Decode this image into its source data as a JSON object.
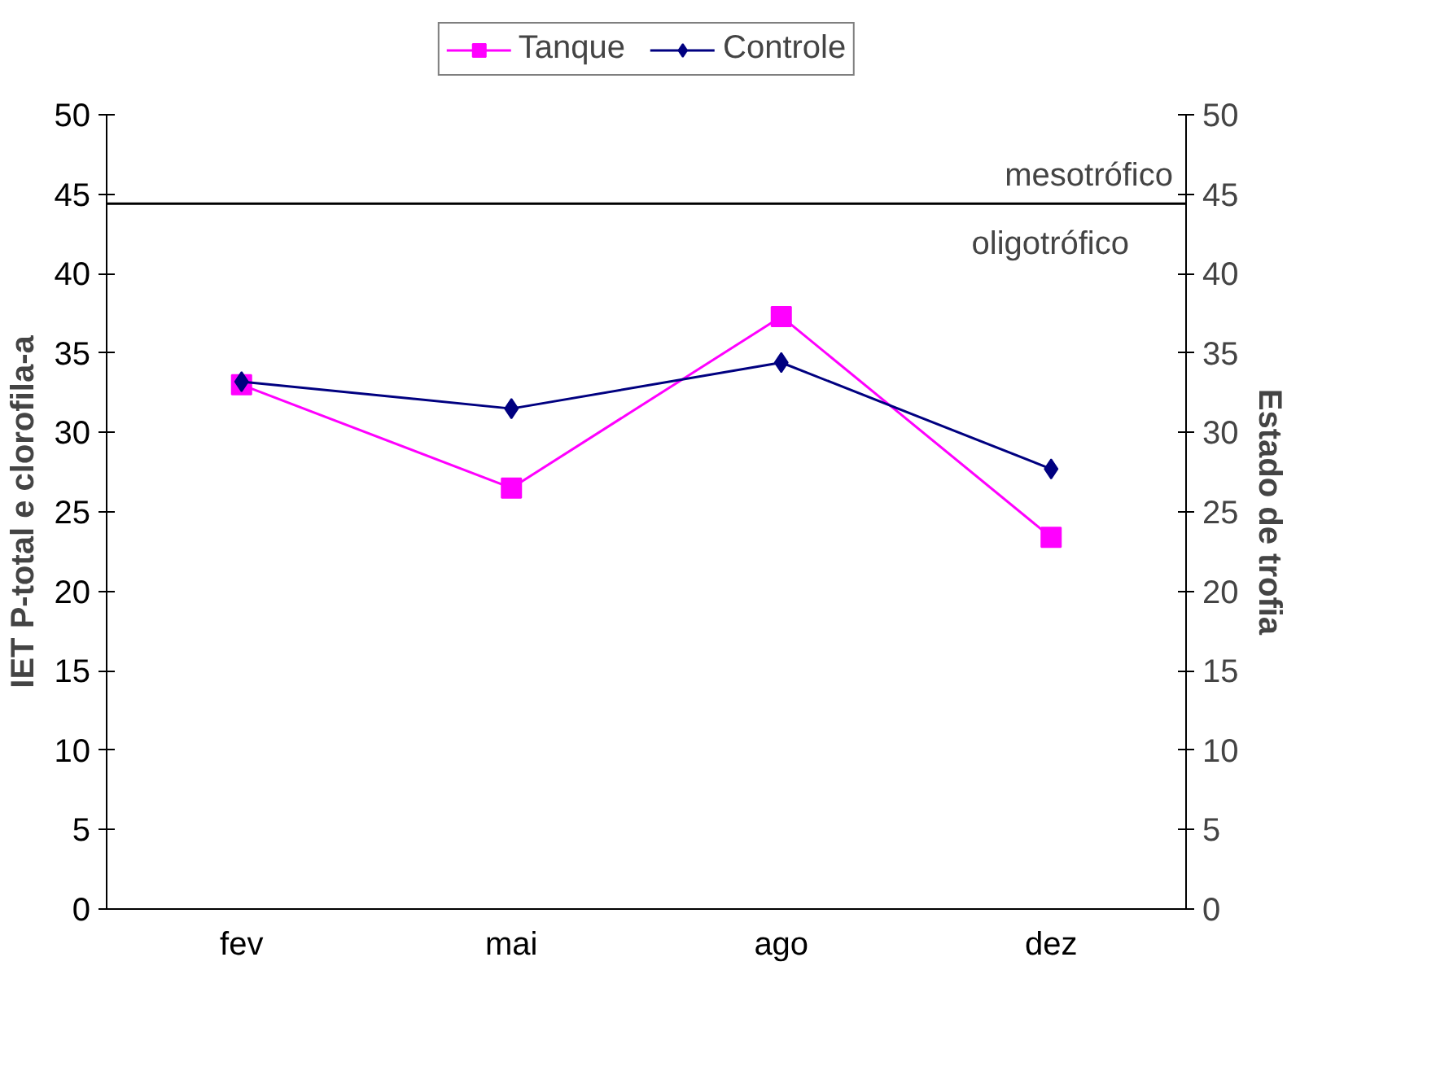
{
  "chart_data": {
    "type": "line",
    "ylabel": "IET P-total e clorofila-a",
    "y2label": "Estado de trofia",
    "categories": [
      "fev",
      "mai",
      "ago",
      "dez"
    ],
    "series": [
      {
        "name": "Tanque",
        "color": "#ff00ff",
        "marker": "square",
        "values": [
          33.0,
          26.5,
          37.3,
          23.4
        ]
      },
      {
        "name": "Controle",
        "color": "#000080",
        "marker": "diamond",
        "values": [
          33.2,
          31.5,
          34.4,
          27.7
        ]
      }
    ],
    "ylim": [
      0,
      50
    ],
    "yticks": [
      0,
      5,
      10,
      15,
      20,
      25,
      30,
      35,
      40,
      45,
      50
    ],
    "y2lim": [
      0,
      50
    ],
    "y2ticks": [
      0,
      5,
      10,
      15,
      20,
      25,
      30,
      35,
      40,
      45,
      50
    ],
    "ref_lines": [
      {
        "axis": "y",
        "value": 44.4,
        "label": "mesotrófico",
        "color": "#000000"
      }
    ],
    "annotations": [
      "oligotrófico"
    ],
    "grid": false,
    "legend": "top",
    "line_style": "solid"
  }
}
